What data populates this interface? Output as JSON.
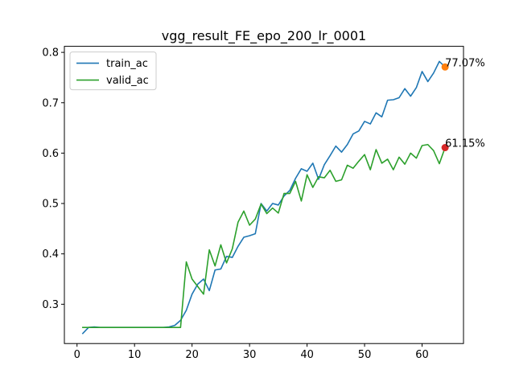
{
  "chart_data": {
    "type": "line",
    "title": "vgg_result_FE_epo_200_lr_0001",
    "xlabel": "",
    "ylabel": "",
    "xlim": [
      -2.2,
      67.2
    ],
    "ylim": [
      0.222,
      0.812
    ],
    "xticks": [
      0,
      10,
      20,
      30,
      40,
      50,
      60
    ],
    "yticks": [
      0.3,
      0.4,
      0.5,
      0.6,
      0.7,
      0.8
    ],
    "grid": false,
    "legend_position": "top-left",
    "series": [
      {
        "name": "train_ac",
        "color": "#1f77b4",
        "x": [
          1,
          2,
          3,
          4,
          5,
          6,
          7,
          8,
          9,
          10,
          11,
          12,
          13,
          14,
          15,
          16,
          17,
          18,
          19,
          20,
          21,
          22,
          23,
          24,
          25,
          26,
          27,
          28,
          29,
          30,
          31,
          32,
          33,
          34,
          35,
          36,
          37,
          38,
          39,
          40,
          41,
          42,
          43,
          44,
          45,
          46,
          47,
          48,
          49,
          50,
          51,
          52,
          53,
          54,
          55,
          56,
          57,
          58,
          59,
          60,
          61,
          62,
          63,
          64
        ],
        "values": [
          0.242,
          0.254,
          0.255,
          0.254,
          0.254,
          0.254,
          0.254,
          0.254,
          0.254,
          0.254,
          0.254,
          0.254,
          0.254,
          0.254,
          0.254,
          0.255,
          0.258,
          0.268,
          0.288,
          0.32,
          0.34,
          0.35,
          0.327,
          0.368,
          0.37,
          0.395,
          0.393,
          0.415,
          0.433,
          0.436,
          0.44,
          0.5,
          0.485,
          0.5,
          0.497,
          0.515,
          0.526,
          0.55,
          0.569,
          0.564,
          0.58,
          0.548,
          0.577,
          0.595,
          0.614,
          0.602,
          0.617,
          0.638,
          0.644,
          0.663,
          0.658,
          0.68,
          0.672,
          0.705,
          0.706,
          0.71,
          0.728,
          0.713,
          0.73,
          0.762,
          0.742,
          0.759,
          0.782,
          0.771
        ]
      },
      {
        "name": "valid_ac",
        "color": "#2ca02c",
        "x": [
          1,
          2,
          3,
          4,
          5,
          6,
          7,
          8,
          9,
          10,
          11,
          12,
          13,
          14,
          15,
          16,
          17,
          18,
          19,
          20,
          21,
          22,
          23,
          24,
          25,
          26,
          27,
          28,
          29,
          30,
          31,
          32,
          33,
          34,
          35,
          36,
          37,
          38,
          39,
          40,
          41,
          42,
          43,
          44,
          45,
          46,
          47,
          48,
          49,
          50,
          51,
          52,
          53,
          54,
          55,
          56,
          57,
          58,
          59,
          60,
          61,
          62,
          63,
          64
        ],
        "values": [
          0.254,
          0.254,
          0.254,
          0.254,
          0.254,
          0.254,
          0.254,
          0.254,
          0.254,
          0.254,
          0.254,
          0.254,
          0.254,
          0.254,
          0.254,
          0.254,
          0.254,
          0.254,
          0.384,
          0.35,
          0.335,
          0.32,
          0.408,
          0.376,
          0.418,
          0.382,
          0.41,
          0.463,
          0.485,
          0.457,
          0.469,
          0.499,
          0.48,
          0.491,
          0.481,
          0.52,
          0.52,
          0.544,
          0.505,
          0.557,
          0.532,
          0.553,
          0.551,
          0.566,
          0.544,
          0.547,
          0.576,
          0.57,
          0.584,
          0.597,
          0.567,
          0.607,
          0.58,
          0.588,
          0.567,
          0.592,
          0.578,
          0.6,
          0.59,
          0.615,
          0.617,
          0.605,
          0.579,
          0.611
        ]
      }
    ],
    "annotations": [
      {
        "x": 64,
        "y": 0.771,
        "text": "77.07%",
        "marker_color": "#ff7f0e"
      },
      {
        "x": 64,
        "y": 0.611,
        "text": "61.15%",
        "marker_color": "#d62728"
      }
    ]
  }
}
